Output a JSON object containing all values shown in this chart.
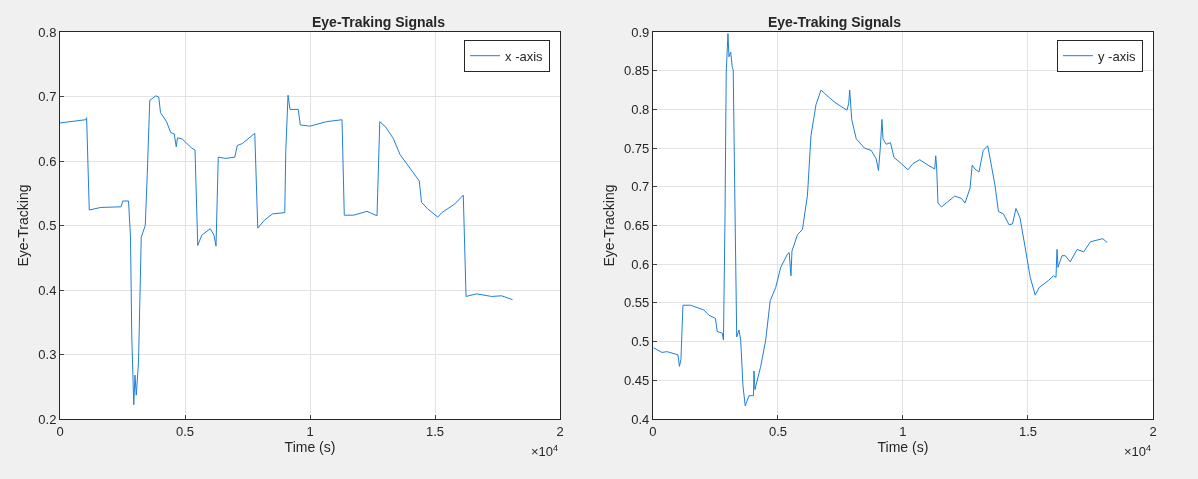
{
  "chart_data": [
    {
      "type": "line",
      "title": "Eye-Traking Signals",
      "xlabel": "Time (s)",
      "ylabel": "Eye-Tracking",
      "annotations": [
        "×10$^{4}$"
      ],
      "x": [
        0,
        0.1024,
        0.1065,
        0.117,
        0.163,
        0.244,
        0.251,
        0.274,
        0.282,
        0.287,
        0.295,
        0.3,
        0.305,
        0.314,
        0.325,
        0.341,
        0.349,
        0.359,
        0.383,
        0.395,
        0.402,
        0.426,
        0.443,
        0.457,
        0.465,
        0.47,
        0.489,
        0.527,
        0.54,
        0.551,
        0.567,
        0.601,
        0.616,
        0.624,
        0.633,
        0.662,
        0.699,
        0.709,
        0.729,
        0.779,
        0.791,
        0.817,
        0.85,
        0.899,
        0.903,
        0.912,
        0.92,
        0.953,
        0.961,
        0.999,
        1.066,
        1.128,
        1.137,
        1.174,
        1.228,
        1.268,
        1.279,
        1.302,
        1.333,
        1.36,
        1.39,
        1.437,
        1.446,
        1.47,
        1.511,
        1.527,
        1.578,
        1.613,
        1.624,
        1.666,
        1.726,
        1.766,
        1.81
      ],
      "series": [
        {
          "name": "x -axis",
          "color": "#1f7fd8",
          "values": [
            0.659,
            0.664,
            0.667,
            0.524,
            0.528,
            0.529,
            0.538,
            0.538,
            0.482,
            0.329,
            0.222,
            0.268,
            0.237,
            0.288,
            0.482,
            0.5,
            0.579,
            0.694,
            0.701,
            0.699,
            0.675,
            0.661,
            0.644,
            0.642,
            0.622,
            0.636,
            0.634,
            0.62,
            0.617,
            0.469,
            0.485,
            0.495,
            0.485,
            0.468,
            0.606,
            0.604,
            0.606,
            0.624,
            0.627,
            0.643,
            0.496,
            0.508,
            0.518,
            0.52,
            0.615,
            0.702,
            0.68,
            0.68,
            0.656,
            0.654,
            0.661,
            0.664,
            0.516,
            0.516,
            0.522,
            0.515,
            0.661,
            0.653,
            0.635,
            0.61,
            0.594,
            0.569,
            0.536,
            0.526,
            0.513,
            0.52,
            0.533,
            0.547,
            0.39,
            0.394,
            0.39,
            0.391,
            0.385
          ]
        }
      ],
      "xlim": [
        0,
        2
      ],
      "xticks": [
        0,
        0.5,
        1,
        1.5,
        2
      ],
      "ylim": [
        0.2,
        0.8
      ],
      "yticks": [
        0.2,
        0.3,
        0.4,
        0.5,
        0.6,
        0.7,
        0.8
      ],
      "grid": true,
      "legend": "top right",
      "line_style": "solid",
      "marker": "none"
    },
    {
      "type": "line",
      "title": "Eye-Traking Signals",
      "xlabel": "Time (s)",
      "ylabel": "Eye-Tracking",
      "annotations": [
        "×10$^{4}$"
      ],
      "x": [
        0.0027,
        0.036,
        0.056,
        0.1,
        0.106,
        0.112,
        0.12,
        0.15,
        0.203,
        0.224,
        0.25,
        0.257,
        0.277,
        0.282,
        0.288,
        0.293,
        0.3,
        0.304,
        0.311,
        0.317,
        0.321,
        0.327,
        0.335,
        0.344,
        0.351,
        0.36,
        0.369,
        0.384,
        0.402,
        0.404,
        0.408,
        0.431,
        0.451,
        0.469,
        0.491,
        0.511,
        0.538,
        0.545,
        0.552,
        0.556,
        0.578,
        0.598,
        0.618,
        0.632,
        0.652,
        0.672,
        0.706,
        0.732,
        0.776,
        0.783,
        0.787,
        0.795,
        0.813,
        0.846,
        0.873,
        0.893,
        0.902,
        0.909,
        0.916,
        0.92,
        0.933,
        0.95,
        0.964,
        0.993,
        1.02,
        1.04,
        1.067,
        1.1,
        1.127,
        1.131,
        1.135,
        1.14,
        1.154,
        1.207,
        1.234,
        1.248,
        1.268,
        1.277,
        1.288,
        1.304,
        1.321,
        1.339,
        1.355,
        1.368,
        1.382,
        1.402,
        1.424,
        1.438,
        1.452,
        1.468,
        1.489,
        1.509,
        1.529,
        1.545,
        1.582,
        1.602,
        1.612,
        1.616,
        1.62,
        1.636,
        1.649,
        1.669,
        1.696,
        1.723,
        1.75,
        1.799,
        1.817
      ],
      "series": [
        {
          "name": "y -axis",
          "color": "#1f7fd8",
          "values": [
            0.492,
            0.486,
            0.487,
            0.483,
            0.468,
            0.477,
            0.547,
            0.547,
            0.541,
            0.534,
            0.53,
            0.513,
            0.511,
            0.502,
            0.655,
            0.847,
            0.898,
            0.868,
            0.874,
            0.855,
            0.851,
            0.698,
            0.506,
            0.515,
            0.502,
            0.443,
            0.417,
            0.43,
            0.43,
            0.462,
            0.438,
            0.468,
            0.502,
            0.553,
            0.57,
            0.596,
            0.613,
            0.615,
            0.585,
            0.617,
            0.638,
            0.645,
            0.689,
            0.766,
            0.806,
            0.825,
            0.815,
            0.808,
            0.799,
            0.808,
            0.825,
            0.787,
            0.762,
            0.75,
            0.747,
            0.736,
            0.721,
            0.749,
            0.787,
            0.762,
            0.755,
            0.757,
            0.738,
            0.73,
            0.722,
            0.73,
            0.735,
            0.728,
            0.723,
            0.74,
            0.723,
            0.679,
            0.674,
            0.688,
            0.685,
            0.679,
            0.698,
            0.728,
            0.723,
            0.719,
            0.747,
            0.753,
            0.725,
            0.702,
            0.668,
            0.665,
            0.651,
            0.652,
            0.672,
            0.66,
            0.621,
            0.583,
            0.56,
            0.57,
            0.579,
            0.585,
            0.583,
            0.619,
            0.596,
            0.611,
            0.611,
            0.603,
            0.619,
            0.616,
            0.629,
            0.633,
            0.628
          ]
        }
      ],
      "xlim": [
        0,
        2
      ],
      "xticks": [
        0,
        0.5,
        1,
        1.5,
        2
      ],
      "ylim": [
        0.4,
        0.9
      ],
      "yticks": [
        0.4,
        0.45,
        0.5,
        0.55,
        0.6,
        0.65,
        0.7,
        0.75,
        0.8,
        0.85,
        0.9
      ],
      "grid": true,
      "legend": "top right",
      "line_style": "solid",
      "marker": "none"
    }
  ]
}
